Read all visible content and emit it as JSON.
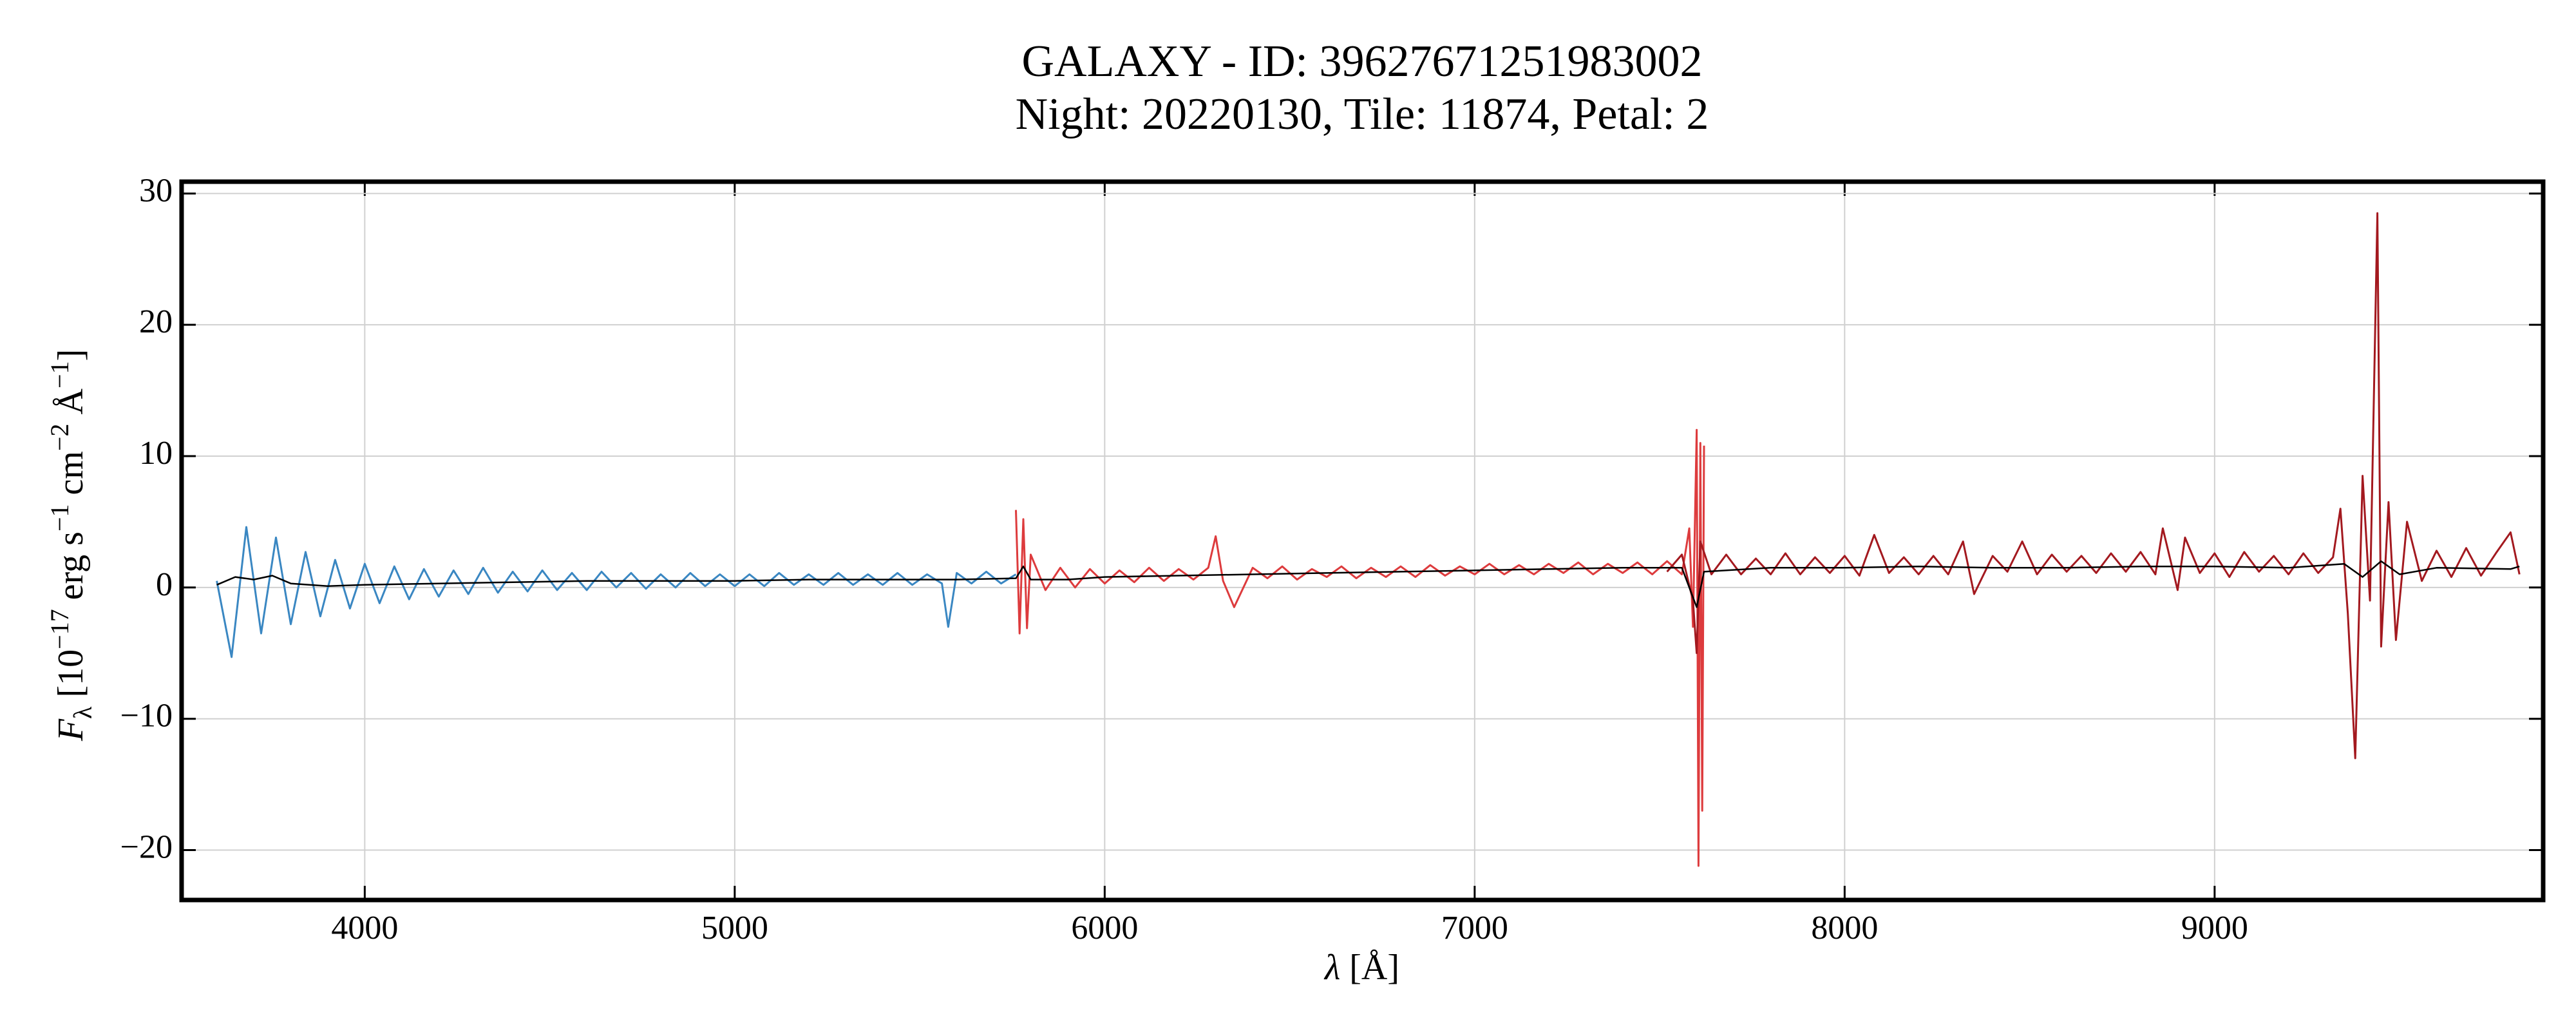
{
  "chart_data": {
    "type": "line",
    "title": [
      "GALAXY - ID: 39627671251983002",
      "Night: 20220130, Tile: 11874, Petal: 2"
    ],
    "xlabel": [
      "λ",
      " [Å]"
    ],
    "ylabel": [
      "F",
      "λ",
      " [10",
      "−17",
      " erg s",
      "−1",
      " cm",
      "−2",
      " Å",
      "−1",
      "]"
    ],
    "xlim": [
      3505,
      9888
    ],
    "ylim": [
      -23.8,
      30.9
    ],
    "xticks": [
      4000,
      5000,
      6000,
      7000,
      8000,
      9000
    ],
    "yticks": [
      {
        "value": -20,
        "label": "−20"
      },
      {
        "value": -10,
        "label": "−10"
      },
      0,
      10,
      20,
      30
    ],
    "grid": true,
    "series": [
      {
        "color": "#3a87c2",
        "x": [
          3600,
          3640,
          3680,
          3720,
          3760,
          3800,
          3840,
          3880,
          3920,
          3960,
          4000,
          4040,
          4080,
          4120,
          4160,
          4200,
          4240,
          4280,
          4320,
          4360,
          4400,
          4440,
          4480,
          4520,
          4560,
          4600,
          4640,
          4680,
          4720,
          4760,
          4800,
          4840,
          4880,
          4920,
          4960,
          5000,
          5040,
          5080,
          5120,
          5160,
          5200,
          5240,
          5280,
          5320,
          5360,
          5400,
          5440,
          5480,
          5520,
          5560,
          5577,
          5600,
          5640,
          5680,
          5720,
          5760
        ],
        "values": [
          0.5,
          -5.3,
          4.6,
          -3.5,
          3.8,
          -2.8,
          2.7,
          -2.2,
          2.1,
          -1.6,
          1.8,
          -1.2,
          1.6,
          -0.9,
          1.4,
          -0.7,
          1.3,
          -0.5,
          1.5,
          -0.4,
          1.2,
          -0.3,
          1.3,
          -0.2,
          1.1,
          -0.2,
          1.2,
          0.0,
          1.1,
          -0.1,
          1.0,
          0.0,
          1.1,
          0.1,
          1.0,
          0.1,
          1.0,
          0.1,
          1.1,
          0.2,
          1.0,
          0.2,
          1.1,
          0.2,
          1.0,
          0.2,
          1.1,
          0.2,
          1.0,
          0.3,
          -3.0,
          1.1,
          0.3,
          1.2,
          0.3,
          1.0
        ]
      },
      {
        "color": "#dd3b3d",
        "x": [
          5760,
          5770,
          5780,
          5790,
          5800,
          5840,
          5880,
          5920,
          5960,
          6000,
          6040,
          6080,
          6120,
          6160,
          6200,
          6240,
          6280,
          6300,
          6320,
          6350,
          6400,
          6440,
          6480,
          6520,
          6560,
          6600,
          6640,
          6680,
          6720,
          6760,
          6800,
          6840,
          6880,
          6920,
          6960,
          7000,
          7040,
          7080,
          7120,
          7160,
          7200,
          7240,
          7280,
          7320,
          7360,
          7400,
          7440,
          7480,
          7520,
          7560,
          7580,
          7590,
          7600,
          7605,
          7610,
          7615,
          7620
        ],
        "values": [
          5.9,
          -3.5,
          5.2,
          -3.1,
          2.5,
          -0.2,
          1.5,
          0.0,
          1.4,
          0.3,
          1.3,
          0.4,
          1.5,
          0.5,
          1.4,
          0.6,
          1.5,
          3.9,
          0.5,
          -1.5,
          1.5,
          0.7,
          1.6,
          0.6,
          1.4,
          0.8,
          1.6,
          0.7,
          1.5,
          0.8,
          1.6,
          0.8,
          1.7,
          0.9,
          1.6,
          1.0,
          1.8,
          1.0,
          1.7,
          1.0,
          1.8,
          1.1,
          1.9,
          1.0,
          1.8,
          1.1,
          1.9,
          1.0,
          2.0,
          1.0,
          4.5,
          -3.0,
          12.0,
          -21.2,
          11.0,
          -17.0,
          10.8
        ]
      },
      {
        "color": "#a3191f",
        "x": [
          7520,
          7560,
          7590,
          7600,
          7610,
          7640,
          7680,
          7720,
          7760,
          7800,
          7840,
          7880,
          7920,
          7960,
          8000,
          8040,
          8080,
          8120,
          8160,
          8200,
          8240,
          8280,
          8320,
          8350,
          8400,
          8440,
          8480,
          8520,
          8560,
          8600,
          8640,
          8680,
          8720,
          8760,
          8800,
          8840,
          8860,
          8900,
          8920,
          8960,
          9000,
          9040,
          9080,
          9120,
          9160,
          9200,
          9240,
          9280,
          9320,
          9340,
          9360,
          9380,
          9400,
          9420,
          9440,
          9450,
          9470,
          9490,
          9520,
          9560,
          9600,
          9640,
          9680,
          9720,
          9760,
          9800,
          9824
        ],
        "values": [
          1.2,
          2.5,
          -1.0,
          -5.0,
          3.5,
          1.0,
          2.5,
          1.0,
          2.2,
          1.0,
          2.6,
          1.0,
          2.3,
          1.1,
          2.4,
          0.9,
          4.0,
          1.1,
          2.3,
          1.0,
          2.4,
          1.0,
          3.5,
          -0.5,
          2.4,
          1.2,
          3.5,
          1.0,
          2.5,
          1.2,
          2.4,
          1.1,
          2.6,
          1.2,
          2.7,
          1.0,
          4.5,
          -0.2,
          3.8,
          1.1,
          2.6,
          0.8,
          2.7,
          1.2,
          2.4,
          1.0,
          2.6,
          1.1,
          2.3,
          6.0,
          -2.0,
          -13.0,
          8.5,
          -1.0,
          28.5,
          -4.5,
          6.5,
          -4.0,
          5.0,
          0.5,
          2.8,
          0.8,
          3.0,
          0.9,
          2.6,
          4.2,
          1.0
        ]
      },
      {
        "color": "#000000",
        "x": [
          3600,
          3650,
          3700,
          3750,
          3800,
          3900,
          4000,
          4200,
          4400,
          4600,
          4800,
          5000,
          5200,
          5400,
          5600,
          5760,
          5780,
          5800,
          5900,
          6000,
          6200,
          6400,
          6600,
          6800,
          7000,
          7200,
          7400,
          7560,
          7600,
          7620,
          7800,
          8000,
          8200,
          8400,
          8600,
          8800,
          9000,
          9200,
          9350,
          9400,
          9450,
          9500,
          9600,
          9800,
          9824
        ],
        "values": [
          0.2,
          0.8,
          0.6,
          0.9,
          0.3,
          0.1,
          0.2,
          0.3,
          0.4,
          0.5,
          0.5,
          0.5,
          0.6,
          0.6,
          0.6,
          0.7,
          1.6,
          0.6,
          0.6,
          0.8,
          0.9,
          1.0,
          1.1,
          1.2,
          1.3,
          1.4,
          1.5,
          1.5,
          -1.5,
          1.2,
          1.5,
          1.5,
          1.6,
          1.5,
          1.5,
          1.6,
          1.6,
          1.5,
          1.8,
          0.8,
          2.0,
          1.0,
          1.5,
          1.4,
          1.6
        ]
      }
    ]
  }
}
